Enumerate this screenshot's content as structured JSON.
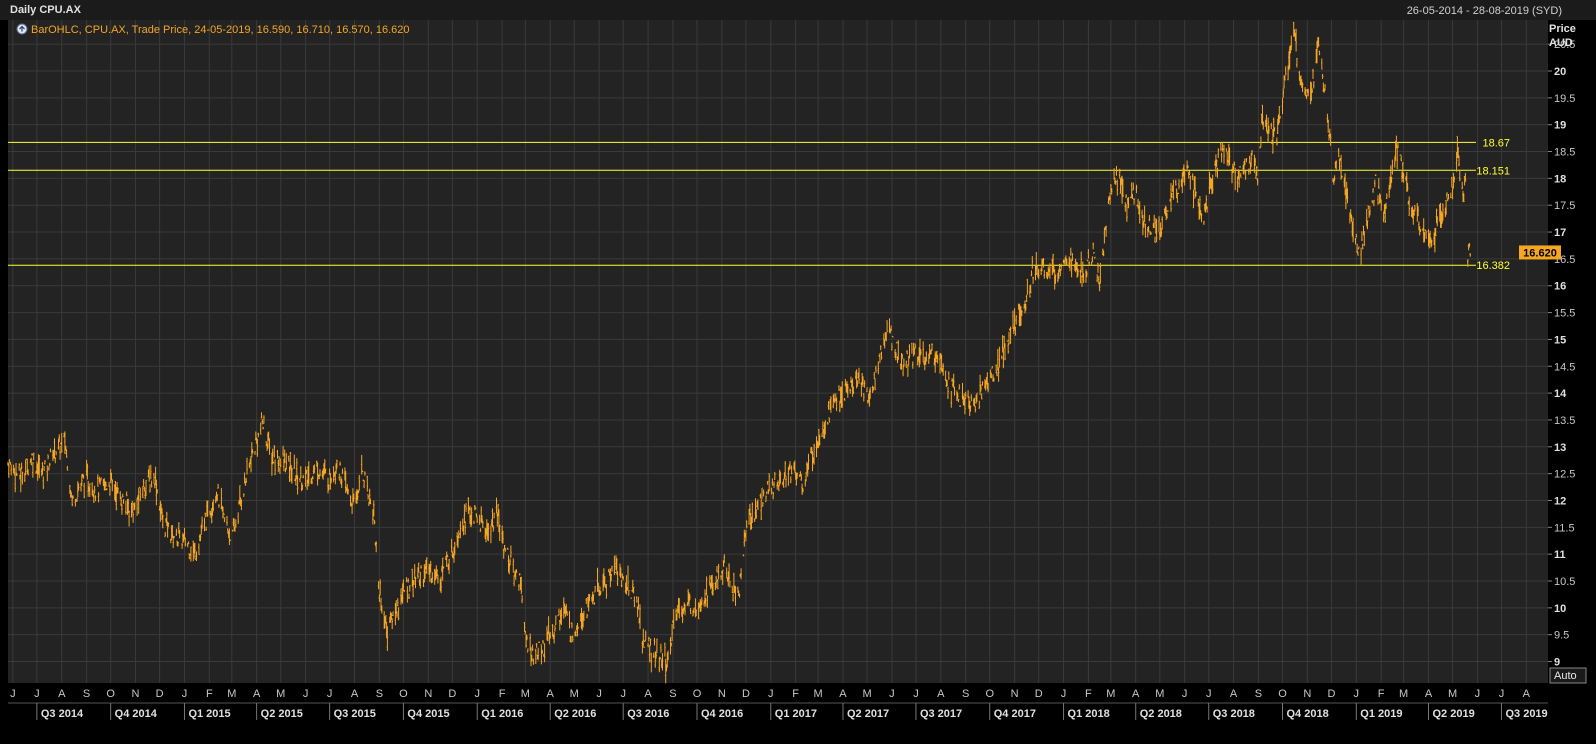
{
  "header": {
    "title": "Daily CPU.AX",
    "date_range": "26-05-2014 - 28-08-2019 (SYD)"
  },
  "legend": {
    "text": "BarOHLC, CPU.AX, Trade Price, 24-05-2019, 16.590, 16.710, 16.570, 16.620"
  },
  "auto_button": {
    "label": "Auto"
  },
  "colors": {
    "background": "#232323",
    "grid": "#3a3a3a",
    "series": "#f5a623",
    "hlines": "#ffff33",
    "last_price_tag": "#f5a623"
  },
  "chart_data": {
    "type": "line",
    "title": "Daily CPU.AX",
    "ylabel": "Price AUD",
    "ylabel_lines": [
      "Price",
      "AUD"
    ],
    "ylim": [
      8.6,
      20.95
    ],
    "y_ticks": [
      "9",
      "9.5",
      "10",
      "10.5",
      "11",
      "11.5",
      "12",
      "12.5",
      "13",
      "13.5",
      "14",
      "14.5",
      "15",
      "15.5",
      "16",
      "16.5",
      "17",
      "17.5",
      "18",
      "18.5",
      "19",
      "19.5",
      "20",
      "20.5"
    ],
    "y_bold_ticks": [
      "9",
      "10",
      "11",
      "12",
      "13",
      "14",
      "15",
      "16",
      "17",
      "18",
      "19",
      "20"
    ],
    "x_range": [
      "2014-05-26",
      "2019-08-28"
    ],
    "month_ticks": [
      {
        "date": "2014-06-01",
        "label": "J"
      },
      {
        "date": "2014-07-01",
        "label": "J"
      },
      {
        "date": "2014-08-01",
        "label": "A"
      },
      {
        "date": "2014-09-01",
        "label": "S"
      },
      {
        "date": "2014-10-01",
        "label": "O"
      },
      {
        "date": "2014-11-01",
        "label": "N"
      },
      {
        "date": "2014-12-01",
        "label": "D"
      },
      {
        "date": "2015-01-01",
        "label": "J"
      },
      {
        "date": "2015-02-01",
        "label": "F"
      },
      {
        "date": "2015-03-01",
        "label": "M"
      },
      {
        "date": "2015-04-01",
        "label": "A"
      },
      {
        "date": "2015-05-01",
        "label": "M"
      },
      {
        "date": "2015-06-01",
        "label": "J"
      },
      {
        "date": "2015-07-01",
        "label": "J"
      },
      {
        "date": "2015-08-01",
        "label": "A"
      },
      {
        "date": "2015-09-01",
        "label": "S"
      },
      {
        "date": "2015-10-01",
        "label": "O"
      },
      {
        "date": "2015-11-01",
        "label": "N"
      },
      {
        "date": "2015-12-01",
        "label": "D"
      },
      {
        "date": "2016-01-01",
        "label": "J"
      },
      {
        "date": "2016-02-01",
        "label": "F"
      },
      {
        "date": "2016-03-01",
        "label": "M"
      },
      {
        "date": "2016-04-01",
        "label": "A"
      },
      {
        "date": "2016-05-01",
        "label": "M"
      },
      {
        "date": "2016-06-01",
        "label": "J"
      },
      {
        "date": "2016-07-01",
        "label": "J"
      },
      {
        "date": "2016-08-01",
        "label": "A"
      },
      {
        "date": "2016-09-01",
        "label": "S"
      },
      {
        "date": "2016-10-01",
        "label": "O"
      },
      {
        "date": "2016-11-01",
        "label": "N"
      },
      {
        "date": "2016-12-01",
        "label": "D"
      },
      {
        "date": "2017-01-01",
        "label": "J"
      },
      {
        "date": "2017-02-01",
        "label": "F"
      },
      {
        "date": "2017-03-01",
        "label": "M"
      },
      {
        "date": "2017-04-01",
        "label": "A"
      },
      {
        "date": "2017-05-01",
        "label": "M"
      },
      {
        "date": "2017-06-01",
        "label": "J"
      },
      {
        "date": "2017-07-01",
        "label": "J"
      },
      {
        "date": "2017-08-01",
        "label": "A"
      },
      {
        "date": "2017-09-01",
        "label": "S"
      },
      {
        "date": "2017-10-01",
        "label": "O"
      },
      {
        "date": "2017-11-01",
        "label": "N"
      },
      {
        "date": "2017-12-01",
        "label": "D"
      },
      {
        "date": "2018-01-01",
        "label": "J"
      },
      {
        "date": "2018-02-01",
        "label": "F"
      },
      {
        "date": "2018-03-01",
        "label": "M"
      },
      {
        "date": "2018-04-01",
        "label": "A"
      },
      {
        "date": "2018-05-01",
        "label": "M"
      },
      {
        "date": "2018-06-01",
        "label": "J"
      },
      {
        "date": "2018-07-01",
        "label": "J"
      },
      {
        "date": "2018-08-01",
        "label": "A"
      },
      {
        "date": "2018-09-01",
        "label": "S"
      },
      {
        "date": "2018-10-01",
        "label": "O"
      },
      {
        "date": "2018-11-01",
        "label": "N"
      },
      {
        "date": "2018-12-01",
        "label": "D"
      },
      {
        "date": "2019-01-01",
        "label": "J"
      },
      {
        "date": "2019-02-01",
        "label": "F"
      },
      {
        "date": "2019-03-01",
        "label": "M"
      },
      {
        "date": "2019-04-01",
        "label": "A"
      },
      {
        "date": "2019-05-01",
        "label": "M"
      },
      {
        "date": "2019-06-01",
        "label": "J"
      },
      {
        "date": "2019-07-01",
        "label": "J"
      },
      {
        "date": "2019-08-01",
        "label": "A"
      }
    ],
    "quarter_ticks": [
      {
        "start": "2014-07-01",
        "end": "2014-10-01",
        "label": "Q3 2014"
      },
      {
        "start": "2014-10-01",
        "end": "2015-01-01",
        "label": "Q4 2014"
      },
      {
        "start": "2015-01-01",
        "end": "2015-04-01",
        "label": "Q1 2015"
      },
      {
        "start": "2015-04-01",
        "end": "2015-07-01",
        "label": "Q2 2015"
      },
      {
        "start": "2015-07-01",
        "end": "2015-10-01",
        "label": "Q3 2015"
      },
      {
        "start": "2015-10-01",
        "end": "2016-01-01",
        "label": "Q4 2015"
      },
      {
        "start": "2016-01-01",
        "end": "2016-04-01",
        "label": "Q1 2016"
      },
      {
        "start": "2016-04-01",
        "end": "2016-07-01",
        "label": "Q2 2016"
      },
      {
        "start": "2016-07-01",
        "end": "2016-10-01",
        "label": "Q3 2016"
      },
      {
        "start": "2016-10-01",
        "end": "2017-01-01",
        "label": "Q4 2016"
      },
      {
        "start": "2017-01-01",
        "end": "2017-04-01",
        "label": "Q1 2017"
      },
      {
        "start": "2017-04-01",
        "end": "2017-07-01",
        "label": "Q2 2017"
      },
      {
        "start": "2017-07-01",
        "end": "2017-10-01",
        "label": "Q3 2017"
      },
      {
        "start": "2017-10-01",
        "end": "2018-01-01",
        "label": "Q4 2017"
      },
      {
        "start": "2018-01-01",
        "end": "2018-04-01",
        "label": "Q1 2018"
      },
      {
        "start": "2018-04-01",
        "end": "2018-07-01",
        "label": "Q2 2018"
      },
      {
        "start": "2018-07-01",
        "end": "2018-10-01",
        "label": "Q3 2018"
      },
      {
        "start": "2018-10-01",
        "end": "2019-01-01",
        "label": "Q4 2018"
      },
      {
        "start": "2019-01-01",
        "end": "2019-04-01",
        "label": "Q1 2019"
      },
      {
        "start": "2019-04-01",
        "end": "2019-07-01",
        "label": "Q2 2019"
      },
      {
        "start": "2019-07-01",
        "end": "2019-10-01",
        "label": "Q3 2019"
      }
    ],
    "horizontal_lines": [
      {
        "value": 18.67,
        "label": "18.67"
      },
      {
        "value": 18.151,
        "label": "18.151"
      },
      {
        "value": 16.382,
        "label": "16.382"
      }
    ],
    "last_price": {
      "value": 16.62,
      "label": "16.620"
    },
    "grid": true,
    "legend_position": "top-left",
    "series": [
      {
        "style": "ohlc-bars",
        "points": [
          [
            "2014-05-26",
            12.7
          ],
          [
            "2014-06-10",
            12.45
          ],
          [
            "2014-06-25",
            12.8
          ],
          [
            "2014-07-08",
            12.5
          ],
          [
            "2014-07-22",
            12.9
          ],
          [
            "2014-08-05",
            13.1
          ],
          [
            "2014-08-14",
            12.0
          ],
          [
            "2014-08-28",
            12.4
          ],
          [
            "2014-09-15",
            12.2
          ],
          [
            "2014-10-01",
            12.35
          ],
          [
            "2014-10-15",
            12.0
          ],
          [
            "2014-10-30",
            11.8
          ],
          [
            "2014-11-12",
            12.3
          ],
          [
            "2014-11-25",
            12.45
          ],
          [
            "2014-12-05",
            11.6
          ],
          [
            "2014-12-18",
            11.35
          ],
          [
            "2015-01-05",
            11.2
          ],
          [
            "2015-01-14",
            11.0
          ],
          [
            "2015-01-28",
            11.65
          ],
          [
            "2015-02-10",
            12.2
          ],
          [
            "2015-02-20",
            11.6
          ],
          [
            "2015-03-02",
            11.3
          ],
          [
            "2015-03-12",
            12.0
          ],
          [
            "2015-03-22",
            12.6
          ],
          [
            "2015-04-01",
            13.1
          ],
          [
            "2015-04-08",
            13.45
          ],
          [
            "2015-04-20",
            12.8
          ],
          [
            "2015-05-05",
            12.7
          ],
          [
            "2015-05-18",
            12.5
          ],
          [
            "2015-06-01",
            12.35
          ],
          [
            "2015-06-15",
            12.6
          ],
          [
            "2015-07-01",
            12.4
          ],
          [
            "2015-07-10",
            12.7
          ],
          [
            "2015-07-22",
            12.2
          ],
          [
            "2015-08-01",
            11.85
          ],
          [
            "2015-08-10",
            12.6
          ],
          [
            "2015-08-17",
            12.2
          ],
          [
            "2015-08-25",
            11.8
          ],
          [
            "2015-08-31",
            10.4
          ],
          [
            "2015-09-10",
            9.6
          ],
          [
            "2015-09-20",
            9.9
          ],
          [
            "2015-10-01",
            10.3
          ],
          [
            "2015-10-15",
            10.55
          ],
          [
            "2015-10-30",
            10.7
          ],
          [
            "2015-11-15",
            10.6
          ],
          [
            "2015-11-30",
            11.0
          ],
          [
            "2015-12-10",
            11.5
          ],
          [
            "2015-12-20",
            11.8
          ],
          [
            "2016-01-05",
            11.6
          ],
          [
            "2016-01-15",
            11.4
          ],
          [
            "2016-01-25",
            11.75
          ],
          [
            "2016-02-05",
            11.1
          ],
          [
            "2016-02-15",
            10.7
          ],
          [
            "2016-02-25",
            10.5
          ],
          [
            "2016-03-01",
            9.4
          ],
          [
            "2016-03-12",
            9.1
          ],
          [
            "2016-03-25",
            9.3
          ],
          [
            "2016-04-05",
            9.6
          ],
          [
            "2016-04-18",
            10.0
          ],
          [
            "2016-04-28",
            9.5
          ],
          [
            "2016-05-10",
            9.9
          ],
          [
            "2016-05-25",
            10.2
          ],
          [
            "2016-06-08",
            10.45
          ],
          [
            "2016-06-20",
            10.8
          ],
          [
            "2016-07-01",
            10.5
          ],
          [
            "2016-07-12",
            10.3
          ],
          [
            "2016-07-20",
            10.0
          ],
          [
            "2016-07-25",
            9.4
          ],
          [
            "2016-08-05",
            9.2
          ],
          [
            "2016-08-18",
            9.05
          ],
          [
            "2016-08-28",
            8.95
          ],
          [
            "2016-09-02",
            9.9
          ],
          [
            "2016-09-15",
            10.0
          ],
          [
            "2016-09-30",
            10.1
          ],
          [
            "2016-10-15",
            10.3
          ],
          [
            "2016-10-30",
            10.6
          ],
          [
            "2016-11-05",
            10.8
          ],
          [
            "2016-11-12",
            10.45
          ],
          [
            "2016-11-22",
            10.2
          ],
          [
            "2016-12-01",
            11.5
          ],
          [
            "2016-12-15",
            11.9
          ],
          [
            "2016-12-30",
            12.2
          ],
          [
            "2017-01-15",
            12.45
          ],
          [
            "2017-01-30",
            12.6
          ],
          [
            "2017-02-10",
            12.3
          ],
          [
            "2017-02-22",
            12.9
          ],
          [
            "2017-03-08",
            13.4
          ],
          [
            "2017-03-22",
            13.9
          ],
          [
            "2017-04-05",
            14.0
          ],
          [
            "2017-04-20",
            14.25
          ],
          [
            "2017-05-05",
            13.9
          ],
          [
            "2017-05-12",
            14.4
          ],
          [
            "2017-05-20",
            14.9
          ],
          [
            "2017-05-28",
            15.2
          ],
          [
            "2017-06-05",
            14.8
          ],
          [
            "2017-06-18",
            14.6
          ],
          [
            "2017-06-30",
            14.8
          ],
          [
            "2017-07-15",
            14.6
          ],
          [
            "2017-07-30",
            14.8
          ],
          [
            "2017-08-08",
            14.3
          ],
          [
            "2017-08-20",
            14.0
          ],
          [
            "2017-09-02",
            13.8
          ],
          [
            "2017-09-15",
            13.85
          ],
          [
            "2017-09-28",
            14.2
          ],
          [
            "2017-10-10",
            14.5
          ],
          [
            "2017-10-22",
            14.9
          ],
          [
            "2017-11-05",
            15.4
          ],
          [
            "2017-11-15",
            15.7
          ],
          [
            "2017-11-25",
            16.3
          ],
          [
            "2017-12-08",
            16.3
          ],
          [
            "2017-12-20",
            16.2
          ],
          [
            "2018-01-05",
            16.6
          ],
          [
            "2018-01-15",
            16.3
          ],
          [
            "2018-01-28",
            16.2
          ],
          [
            "2018-02-08",
            16.6
          ],
          [
            "2018-02-15",
            16.0
          ],
          [
            "2018-02-22",
            17.0
          ],
          [
            "2018-03-01",
            17.8
          ],
          [
            "2018-03-10",
            18.1
          ],
          [
            "2018-03-20",
            17.5
          ],
          [
            "2018-04-01",
            17.7
          ],
          [
            "2018-04-15",
            17.1
          ],
          [
            "2018-04-30",
            17.0
          ],
          [
            "2018-05-12",
            17.5
          ],
          [
            "2018-05-25",
            17.9
          ],
          [
            "2018-06-05",
            18.3
          ],
          [
            "2018-06-15",
            17.6
          ],
          [
            "2018-06-25",
            17.3
          ],
          [
            "2018-07-05",
            17.9
          ],
          [
            "2018-07-15",
            18.5
          ],
          [
            "2018-07-25",
            18.4
          ],
          [
            "2018-08-05",
            18.0
          ],
          [
            "2018-08-15",
            18.2
          ],
          [
            "2018-08-25",
            18.3
          ],
          [
            "2018-09-01",
            18.0
          ],
          [
            "2018-09-05",
            19.2
          ],
          [
            "2018-09-12",
            19.0
          ],
          [
            "2018-09-22",
            18.7
          ],
          [
            "2018-10-01",
            19.5
          ],
          [
            "2018-10-08",
            20.1
          ],
          [
            "2018-10-15",
            20.7
          ],
          [
            "2018-10-22",
            20.0
          ],
          [
            "2018-10-30",
            19.6
          ],
          [
            "2018-11-08",
            19.8
          ],
          [
            "2018-11-15",
            20.5
          ],
          [
            "2018-11-22",
            19.8
          ],
          [
            "2018-11-28",
            18.8
          ],
          [
            "2018-12-03",
            17.9
          ],
          [
            "2018-12-10",
            18.4
          ],
          [
            "2018-12-18",
            17.8
          ],
          [
            "2018-12-28",
            17.0
          ],
          [
            "2019-01-05",
            16.6
          ],
          [
            "2019-01-15",
            17.2
          ],
          [
            "2019-01-25",
            17.9
          ],
          [
            "2019-02-05",
            17.4
          ],
          [
            "2019-02-15",
            18.2
          ],
          [
            "2019-02-22",
            18.6
          ],
          [
            "2019-03-02",
            18.0
          ],
          [
            "2019-03-12",
            17.3
          ],
          [
            "2019-03-25",
            17.1
          ],
          [
            "2019-04-05",
            16.9
          ],
          [
            "2019-04-18",
            17.3
          ],
          [
            "2019-04-30",
            17.8
          ],
          [
            "2019-05-08",
            18.5
          ],
          [
            "2019-05-14",
            17.6
          ],
          [
            "2019-05-17",
            17.9
          ],
          [
            "2019-05-20",
            16.5
          ],
          [
            "2019-05-22",
            16.62
          ],
          [
            "2019-05-24",
            16.62
          ]
        ]
      }
    ]
  }
}
